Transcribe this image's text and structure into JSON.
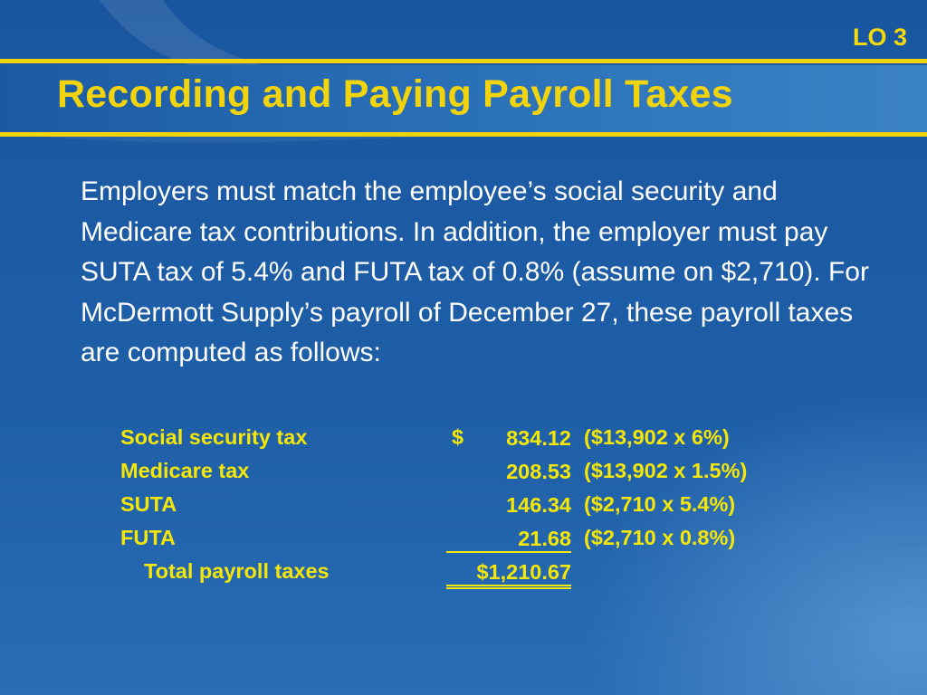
{
  "header": {
    "lo_tag": "LO 3",
    "title": "Recording and Paying Payroll Taxes"
  },
  "body": {
    "paragraph": "Employers must match the employee’s social security and Medicare tax contributions. In addition, the employer must pay SUTA tax of 5.4% and FUTA tax of 0.8% (assume on $2,710). For McDermott Supply’s payroll of December 27, these payroll taxes are computed as follows:"
  },
  "table": {
    "rows": [
      {
        "label": "Social security tax",
        "dollar": "$",
        "amount": "834.12",
        "note": "($13,902 x 6%)"
      },
      {
        "label": "Medicare tax",
        "dollar": "",
        "amount": "208.53",
        "note": "($13,902 x 1.5%)"
      },
      {
        "label": "SUTA",
        "dollar": "",
        "amount": "146.34",
        "note": "($2,710 x 5.4%)"
      },
      {
        "label": "FUTA",
        "dollar": "",
        "amount": "21.68",
        "note": "($2,710 x 0.8%)"
      }
    ],
    "total": {
      "label": "Total payroll taxes",
      "amount": "$1,210.67"
    }
  },
  "colors": {
    "background": "#1c5aa2",
    "accent_yellow": "#f2d40d",
    "table_yellow": "#f5e60a",
    "text_white": "#ffffff"
  }
}
